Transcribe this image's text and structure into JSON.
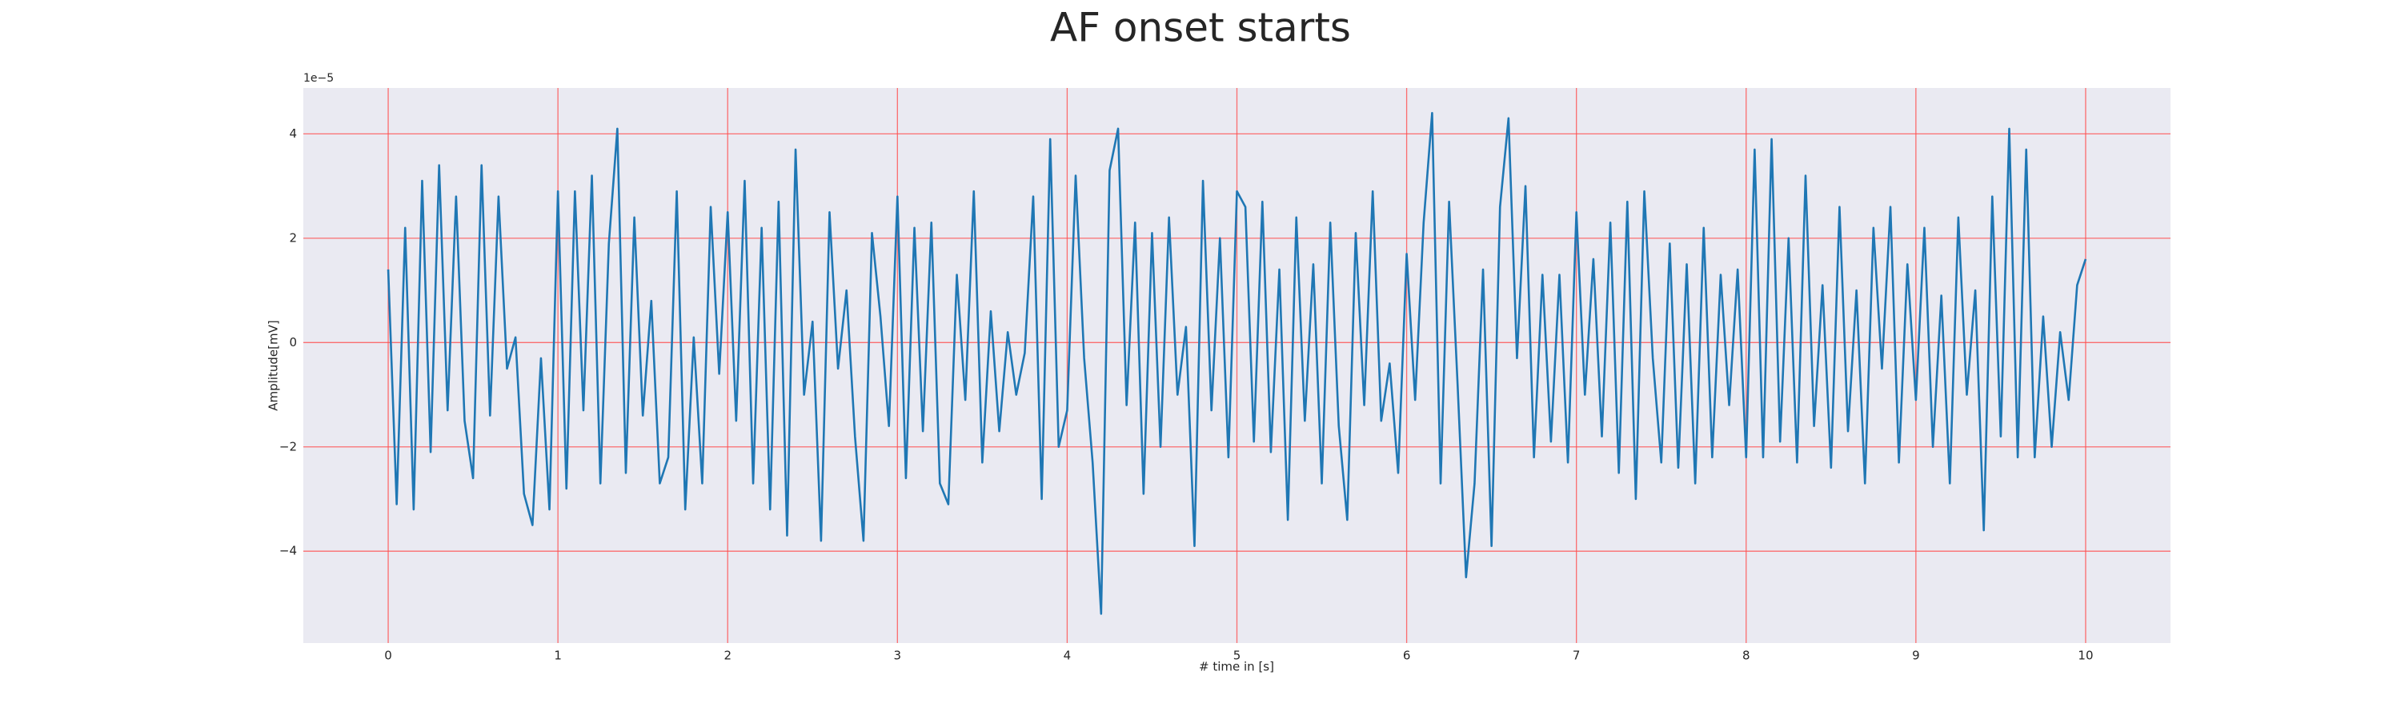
{
  "chart_data": {
    "type": "line",
    "title": "AF onset starts",
    "x_label": "# time in [s]",
    "y_label": "Amplitude[mV]",
    "y_offset_label": "1e−5",
    "xlim": [
      -0.5,
      10.5
    ],
    "ylim": [
      -5.76,
      4.88
    ],
    "xticks": [
      0,
      1,
      2,
      3,
      4,
      5,
      6,
      7,
      8,
      9,
      10
    ],
    "yticks": [
      {
        "value": -4,
        "label": "−4"
      },
      {
        "value": -2,
        "label": "−2"
      },
      0,
      2,
      4
    ],
    "grid": true,
    "grid_color": "#ff4d4d",
    "background": "#eaeaf2",
    "series": [
      {
        "color": "#1f77b4",
        "x": [
          0,
          0.05,
          0.1,
          0.15,
          0.2,
          0.25,
          0.3,
          0.35,
          0.4,
          0.45,
          0.5,
          0.55,
          0.6,
          0.65,
          0.7,
          0.75,
          0.8,
          0.85,
          0.9,
          0.95,
          1,
          1.05,
          1.1,
          1.15,
          1.2,
          1.25,
          1.3,
          1.35,
          1.4,
          1.45,
          1.5,
          1.55,
          1.6,
          1.65,
          1.7,
          1.75,
          1.8,
          1.85,
          1.9,
          1.95,
          2,
          2.05,
          2.1,
          2.15,
          2.2,
          2.25,
          2.3,
          2.35,
          2.4,
          2.45,
          2.5,
          2.55,
          2.6,
          2.65,
          2.7,
          2.75,
          2.8,
          2.85,
          2.9,
          2.95,
          3,
          3.05,
          3.1,
          3.15,
          3.2,
          3.25,
          3.3,
          3.35,
          3.4,
          3.45,
          3.5,
          3.55,
          3.6,
          3.65,
          3.7,
          3.75,
          3.8,
          3.85,
          3.9,
          3.95,
          4,
          4.05,
          4.1,
          4.15,
          4.2,
          4.25,
          4.3,
          4.35,
          4.4,
          4.45,
          4.5,
          4.55,
          4.6,
          4.65,
          4.7,
          4.75,
          4.8,
          4.85,
          4.9,
          4.95,
          5,
          5.05,
          5.1,
          5.15,
          5.2,
          5.25,
          5.3,
          5.35,
          5.4,
          5.45,
          5.5,
          5.55,
          5.6,
          5.65,
          5.7,
          5.75,
          5.8,
          5.85,
          5.9,
          5.95,
          6,
          6.05,
          6.1,
          6.15,
          6.2,
          6.25,
          6.3,
          6.35,
          6.4,
          6.45,
          6.5,
          6.55,
          6.6,
          6.65,
          6.7,
          6.75,
          6.8,
          6.85,
          6.9,
          6.95,
          7,
          7.05,
          7.1,
          7.15,
          7.2,
          7.25,
          7.3,
          7.35,
          7.4,
          7.45,
          7.5,
          7.55,
          7.6,
          7.65,
          7.7,
          7.75,
          7.8,
          7.85,
          7.9,
          7.95,
          8,
          8.05,
          8.1,
          8.15,
          8.2,
          8.25,
          8.3,
          8.35,
          8.4,
          8.45,
          8.5,
          8.55,
          8.6,
          8.65,
          8.7,
          8.75,
          8.8,
          8.85,
          8.9,
          8.95,
          9,
          9.05,
          9.1,
          9.15,
          9.2,
          9.25,
          9.3,
          9.35,
          9.4,
          9.45,
          9.5,
          9.55,
          9.6,
          9.65,
          9.7,
          9.75,
          9.8,
          9.85,
          9.9,
          9.95,
          10
        ],
        "values": [
          1.4,
          -3.1,
          2.2,
          -3.2,
          3.1,
          -2.1,
          3.4,
          -1.3,
          2.8,
          -1.5,
          -2.6,
          3.4,
          -1.4,
          2.8,
          -0.5,
          0.1,
          -2.9,
          -3.5,
          -0.3,
          -3.2,
          2.9,
          -2.8,
          2.9,
          -1.3,
          3.2,
          -2.7,
          1.9,
          4.1,
          -2.5,
          2.4,
          -1.4,
          0.8,
          -2.7,
          -2.2,
          2.9,
          -3.2,
          0.1,
          -2.7,
          2.6,
          -0.6,
          2.5,
          -1.5,
          3.1,
          -2.7,
          2.2,
          -3.2,
          2.7,
          -3.7,
          3.7,
          -1.0,
          0.4,
          -3.8,
          2.5,
          -0.5,
          1.0,
          -1.8,
          -3.8,
          2.1,
          0.5,
          -1.6,
          2.8,
          -2.6,
          2.2,
          -1.7,
          2.3,
          -2.7,
          -3.1,
          1.3,
          -1.1,
          2.9,
          -2.3,
          0.6,
          -1.7,
          0.2,
          -1.0,
          -0.2,
          2.8,
          -3.0,
          3.9,
          -2.0,
          -1.3,
          3.2,
          -0.3,
          -2.3,
          -5.2,
          3.3,
          4.1,
          -1.2,
          2.3,
          -2.9,
          2.1,
          -2.0,
          2.4,
          -1.0,
          0.3,
          -3.9,
          3.1,
          -1.3,
          2.0,
          -2.2,
          2.9,
          2.6,
          -1.9,
          2.7,
          -2.1,
          1.4,
          -3.4,
          2.4,
          -1.5,
          1.5,
          -2.7,
          2.3,
          -1.6,
          -3.4,
          2.1,
          -1.2,
          2.9,
          -1.5,
          -0.4,
          -2.5,
          1.7,
          -1.1,
          2.3,
          4.4,
          -2.7,
          2.7,
          -0.8,
          -4.5,
          -2.7,
          1.4,
          -3.9,
          2.6,
          4.3,
          -0.3,
          3.0,
          -2.2,
          1.3,
          -1.9,
          1.3,
          -2.3,
          2.5,
          -1.0,
          1.6,
          -1.8,
          2.3,
          -2.5,
          2.7,
          -3.0,
          2.9,
          -0.3,
          -2.3,
          1.9,
          -2.4,
          1.5,
          -2.7,
          2.2,
          -2.2,
          1.3,
          -1.2,
          1.4,
          -2.2,
          3.7,
          -2.2,
          3.9,
          -1.9,
          2.0,
          -2.3,
          3.2,
          -1.6,
          1.1,
          -2.4,
          2.6,
          -1.7,
          1.0,
          -2.7,
          2.2,
          -0.5,
          2.6,
          -2.3,
          1.5,
          -1.1,
          2.2,
          -2.0,
          0.9,
          -2.7,
          2.4,
          -1.0,
          1.0,
          -3.6,
          2.8,
          -1.8,
          4.1,
          -2.2,
          3.7,
          -2.2,
          0.5,
          -2.0,
          0.2,
          -1.1,
          1.1,
          1.6
        ]
      }
    ]
  }
}
